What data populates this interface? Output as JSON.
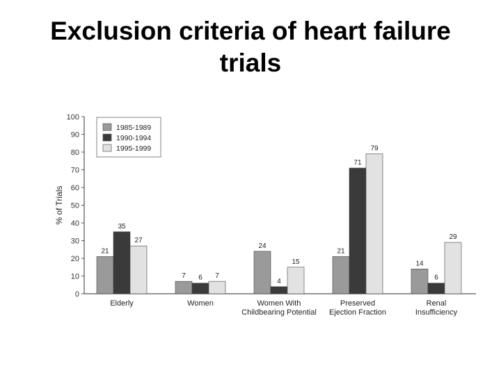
{
  "slide": {
    "title_line1": "Exclusion criteria of heart failure",
    "title_line2": "trials"
  },
  "chart_data": {
    "type": "bar",
    "title": "",
    "xlabel": "",
    "ylabel": "% of Trials",
    "ylim": [
      0,
      100
    ],
    "yticks": [
      0,
      10,
      20,
      30,
      40,
      50,
      60,
      70,
      80,
      90,
      100
    ],
    "grid": false,
    "legend_position": "top-left",
    "categories": [
      [
        "Elderly"
      ],
      [
        "Women"
      ],
      [
        "Women With",
        "Childbearing Potential"
      ],
      [
        "Preserved",
        "Ejection Fraction"
      ],
      [
        "Renal",
        "Insufficiency"
      ]
    ],
    "series": [
      {
        "name": "1985-1989",
        "color": "#9a9a9a",
        "values": [
          21,
          7,
          24,
          21,
          14
        ]
      },
      {
        "name": "1990-1994",
        "color": "#3a3a3a",
        "values": [
          35,
          6,
          4,
          71,
          6
        ]
      },
      {
        "name": "1995-1999",
        "color": "#e2e2e2",
        "values": [
          27,
          7,
          15,
          79,
          29
        ]
      }
    ]
  }
}
